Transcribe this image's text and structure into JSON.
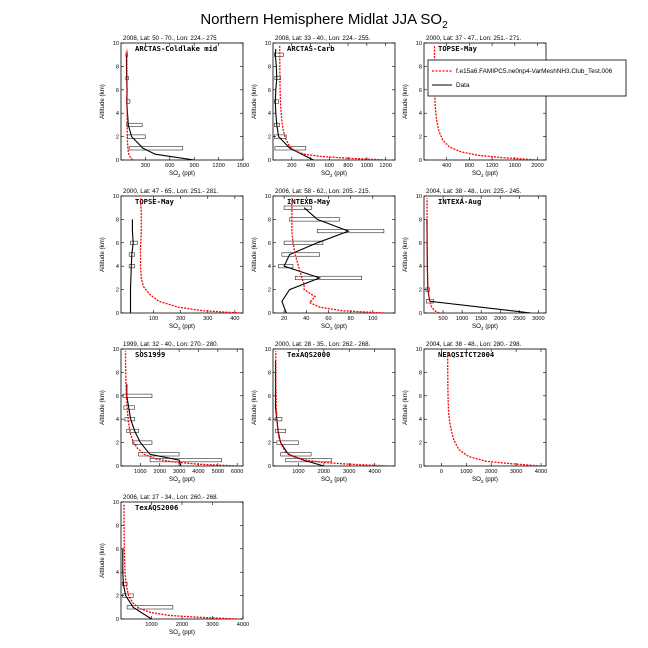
{
  "figure": {
    "title_main": "Northern Hemisphere Midlat JJA SO",
    "title_sub": "2",
    "legend": [
      {
        "label": "f.e15a6.FAMIPC5.ne0np4-VarMeshNH3.Club_Test.006",
        "color": "#ff0000",
        "style": "dashed"
      },
      {
        "label": "Data",
        "color": "#000000",
        "style": "solid"
      }
    ]
  },
  "chart_data": [
    {
      "type": "line",
      "subtitle": "2008, Lat: 50 - 70., Lon: 224.- 275",
      "inner_title": "ARCTAS-Coldlake mid",
      "xlabel_main": "SO",
      "xlabel_sub": "2",
      "xlabel_unit": " (ppt)",
      "ylabel": "Altitude (km)",
      "xlim": [
        0,
        1500
      ],
      "ylim": [
        0,
        10
      ],
      "xticks": [
        300,
        600,
        900,
        1200,
        1500
      ],
      "yticks": [
        0,
        2,
        4,
        6,
        8,
        10
      ],
      "model": {
        "x": [
          145,
          120,
          100,
          90,
          85,
          80,
          78,
          76,
          75,
          74,
          74,
          73,
          73
        ],
        "y": [
          0,
          0.2,
          0.4,
          0.7,
          1,
          1.5,
          2,
          3,
          4,
          5,
          6,
          8,
          9.5
        ]
      },
      "data": {
        "x": [
          900,
          420,
          270,
          130,
          90,
          80,
          70,
          75,
          70,
          68,
          68
        ],
        "y": [
          0,
          0.5,
          1,
          2,
          3,
          4,
          5,
          6,
          7,
          8,
          9
        ]
      },
      "bars": [
        {
          "y": 1,
          "lo": 100,
          "hi": 760
        },
        {
          "y": 2,
          "lo": 80,
          "hi": 300
        },
        {
          "y": 3,
          "lo": 70,
          "hi": 260
        },
        {
          "y": 5,
          "lo": 70,
          "hi": 110
        },
        {
          "y": 7,
          "lo": 60,
          "hi": 90
        },
        {
          "y": 9,
          "lo": 60,
          "hi": 80
        }
      ]
    },
    {
      "type": "line",
      "subtitle": "2008, Lat: 33 - 40., Lon: 224.- 255.",
      "inner_title": "ARCTAS-Carb",
      "xlabel_main": "SO",
      "xlabel_sub": "2",
      "xlabel_unit": " (ppt)",
      "ylabel": "Altitude (km)",
      "xlim": [
        0,
        1300
      ],
      "ylim": [
        0,
        10
      ],
      "xticks": [
        200,
        400,
        600,
        800,
        1000,
        1200
      ],
      "yticks": [
        0,
        2,
        4,
        6,
        8,
        10
      ],
      "model": {
        "x": [
          1200,
          800,
          520,
          330,
          230,
          175,
          135,
          110,
          95,
          85,
          80,
          76,
          73,
          72,
          71
        ],
        "y": [
          0,
          0.15,
          0.3,
          0.5,
          0.8,
          1.2,
          1.8,
          2.5,
          3.3,
          4.2,
          5,
          6,
          7,
          8.5,
          9.8
        ]
      },
      "data": {
        "x": [
          430,
          180,
          60,
          40,
          30,
          25,
          30,
          40,
          35,
          30,
          25,
          30
        ],
        "y": [
          0,
          1,
          2,
          3,
          4,
          5,
          6,
          7,
          8,
          8.5,
          9,
          9.5
        ]
      },
      "bars": [
        {
          "y": 1,
          "lo": 20,
          "hi": 350
        },
        {
          "y": 2,
          "lo": 15,
          "hi": 140
        },
        {
          "y": 3,
          "lo": 15,
          "hi": 70
        },
        {
          "y": 5,
          "lo": 15,
          "hi": 60
        },
        {
          "y": 7,
          "lo": 20,
          "hi": 80
        },
        {
          "y": 9,
          "lo": 15,
          "hi": 110
        }
      ]
    },
    {
      "type": "line",
      "subtitle": "2000, Lat: 37 - 47., Lon: 251.- 271.",
      "inner_title": "TOPSE-May",
      "xlabel_main": "SO",
      "xlabel_sub": "2",
      "xlabel_unit": " (ppt)",
      "ylabel": "Altitude (km)",
      "xlim": [
        0,
        2150
      ],
      "ylim": [
        0,
        10
      ],
      "xticks": [
        400,
        800,
        1200,
        1600,
        2000
      ],
      "yticks": [
        0,
        2,
        4,
        6,
        8,
        10
      ],
      "model": {
        "x": [
          2000,
          1400,
          950,
          650,
          450,
          330,
          260,
          220,
          200,
          190,
          185,
          185,
          185
        ],
        "y": [
          0,
          0.2,
          0.4,
          0.7,
          1.1,
          1.7,
          2.5,
          3.5,
          4.5,
          5.5,
          6.5,
          8,
          9.8
        ]
      },
      "data": {
        "x": [],
        "y": []
      },
      "bars": []
    },
    {
      "type": "line",
      "subtitle": "2000, Lat: 47 - 65., Lon: 251.- 281.",
      "inner_title": "TOPSE-May",
      "xlabel_main": "SO",
      "xlabel_sub": "2",
      "xlabel_unit": " (ppt)",
      "ylabel": "Altitude (km)",
      "xlim": [
        -20,
        430
      ],
      "ylim": [
        0,
        10
      ],
      "xticks": [
        100,
        200,
        300,
        400
      ],
      "yticks": [
        0,
        2,
        4,
        6,
        8,
        10
      ],
      "model": {
        "x": [
          420,
          280,
          190,
          120,
          85,
          62,
          55,
          52,
          52,
          55,
          55,
          52
        ],
        "y": [
          0,
          0.2,
          0.5,
          1,
          1.6,
          2.3,
          3,
          4,
          5.5,
          7,
          8.5,
          9.8
        ]
      },
      "data": {
        "x": [
          15,
          15,
          18,
          20,
          25,
          22,
          22
        ],
        "y": [
          0,
          2,
          4,
          5,
          6,
          7,
          8
        ]
      },
      "bars": [
        {
          "y": 4,
          "lo": 10,
          "hi": 30
        },
        {
          "y": 5,
          "lo": 10,
          "hi": 30
        },
        {
          "y": 6,
          "lo": 15,
          "hi": 40
        }
      ]
    },
    {
      "type": "line",
      "subtitle": "2006, Lat: 58 - 62., Lon: 205.- 215.",
      "inner_title": "INTEXB-May",
      "xlabel_main": "SO",
      "xlabel_sub": "2",
      "xlabel_unit": " (ppt)",
      "ylabel": "Altitude (km)",
      "xlim": [
        10,
        120
      ],
      "ylim": [
        0,
        10
      ],
      "xticks": [
        20,
        40,
        60,
        80,
        100
      ],
      "yticks": [
        0,
        2,
        4,
        6,
        8,
        10
      ],
      "model": {
        "x": [
          110,
          72,
          52,
          43,
          48,
          38,
          38,
          36,
          33,
          30,
          28,
          27,
          27,
          27
        ],
        "y": [
          0,
          0.2,
          0.5,
          0.9,
          1.4,
          2,
          2.5,
          3,
          4,
          5,
          6,
          7,
          8.5,
          9.8
        ]
      },
      "data": {
        "x": [
          22,
          18,
          25,
          52,
          20,
          25,
          50,
          78,
          50,
          38
        ],
        "y": [
          0,
          1,
          2,
          3,
          4,
          5,
          6,
          7,
          8,
          9
        ]
      },
      "bars": [
        {
          "y": 3,
          "lo": 30,
          "hi": 90
        },
        {
          "y": 4,
          "lo": 15,
          "hi": 28
        },
        {
          "y": 5,
          "lo": 18,
          "hi": 52
        },
        {
          "y": 6,
          "lo": 20,
          "hi": 55
        },
        {
          "y": 7,
          "lo": 50,
          "hi": 110
        },
        {
          "y": 8,
          "lo": 25,
          "hi": 70
        },
        {
          "y": 9,
          "lo": 20,
          "hi": 45
        }
      ]
    },
    {
      "type": "line",
      "subtitle": "2004, Lat: 38 - 48., Lon: 225.- 245.",
      "inner_title": "INTEXA-Aug",
      "xlabel_main": "SO",
      "xlabel_sub": "2",
      "xlabel_unit": " (ppt)",
      "ylabel": "Altitude (km)",
      "xlim": [
        0,
        3200
      ],
      "ylim": [
        0,
        10
      ],
      "xticks": [
        500,
        1000,
        1500,
        2000,
        2500,
        3000
      ],
      "yticks": [
        0,
        2,
        4,
        6,
        8,
        10
      ],
      "model": {
        "x": [
          400,
          280,
          200,
          150,
          120,
          100,
          90,
          85,
          82,
          80,
          80,
          80
        ],
        "y": [
          0,
          0.2,
          0.5,
          1,
          1.6,
          2.5,
          3.5,
          4.5,
          5.5,
          7,
          8.5,
          9.8
        ]
      },
      "data": {
        "x": [
          2800,
          150,
          100,
          90,
          80,
          75
        ],
        "y": [
          0,
          1,
          2,
          4,
          6,
          8
        ]
      },
      "bars": [
        {
          "y": 1,
          "lo": 60,
          "hi": 250
        },
        {
          "y": 2,
          "lo": 50,
          "hi": 150
        }
      ]
    },
    {
      "type": "line",
      "subtitle": "1999, Lat: 32 - 40., Lon: 270.- 280.",
      "inner_title": "SOS1999",
      "xlabel_main": "SO",
      "xlabel_sub": "2",
      "xlabel_unit": " (ppt)",
      "ylabel": "Altitude (km)",
      "xlim": [
        0,
        6300
      ],
      "ylim": [
        0,
        10
      ],
      "xticks": [
        1000,
        2000,
        3000,
        4000,
        5000,
        6000
      ],
      "yticks": [
        0,
        2,
        4,
        6,
        8,
        10
      ],
      "model": {
        "x": [
          6000,
          4000,
          2700,
          1800,
          1200,
          850,
          620,
          480,
          400,
          340,
          300,
          270,
          250,
          240,
          230
        ],
        "y": [
          0,
          0.15,
          0.35,
          0.6,
          1,
          1.5,
          2.1,
          2.8,
          3.6,
          4.5,
          5.5,
          6.5,
          7.5,
          8.5,
          9.8
        ]
      },
      "data": {
        "x": [
          3100,
          3000,
          1500,
          1000,
          700,
          500,
          400,
          300,
          300
        ],
        "y": [
          0,
          0.5,
          1,
          2,
          3,
          4,
          5,
          6,
          7
        ]
      },
      "bars": [
        {
          "y": 0.5,
          "lo": 1500,
          "hi": 5200
        },
        {
          "y": 1,
          "lo": 900,
          "hi": 3000
        },
        {
          "y": 2,
          "lo": 600,
          "hi": 1600
        },
        {
          "y": 3,
          "lo": 300,
          "hi": 900
        },
        {
          "y": 4,
          "lo": 200,
          "hi": 700
        },
        {
          "y": 5,
          "lo": 150,
          "hi": 700
        },
        {
          "y": 6,
          "lo": 100,
          "hi": 1600
        }
      ]
    },
    {
      "type": "line",
      "subtitle": "2000, Lat: 28 - 35., Lon: 262.- 268.",
      "inner_title": "TexAQS2000",
      "xlabel_main": "SO",
      "xlabel_sub": "2",
      "xlabel_unit": " (ppt)",
      "ylabel": "Altitude (km)",
      "xlim": [
        0,
        4800
      ],
      "ylim": [
        0,
        10
      ],
      "xticks": [
        1000,
        2000,
        3000,
        4000
      ],
      "yticks": [
        0,
        2,
        4,
        6,
        8,
        10
      ],
      "model": {
        "x": [
          4600,
          3000,
          2000,
          1300,
          800,
          500,
          330,
          230,
          180,
          150,
          130,
          120,
          115,
          110,
          110
        ],
        "y": [
          0,
          0.15,
          0.3,
          0.5,
          0.8,
          1.2,
          1.8,
          2.5,
          3.3,
          4.2,
          5,
          6,
          7,
          8.5,
          9.8
        ]
      },
      "data": {
        "x": [
          2000,
          1200,
          600,
          300,
          200,
          150,
          100,
          100,
          100,
          100,
          100
        ],
        "y": [
          0,
          0.5,
          1,
          2,
          3,
          4,
          5,
          6,
          7,
          8,
          9
        ]
      },
      "bars": [
        {
          "y": 0.5,
          "lo": 500,
          "hi": 2300
        },
        {
          "y": 1,
          "lo": 300,
          "hi": 1500
        },
        {
          "y": 2,
          "lo": 150,
          "hi": 1000
        },
        {
          "y": 3,
          "lo": 100,
          "hi": 500
        },
        {
          "y": 4,
          "lo": 80,
          "hi": 350
        }
      ]
    },
    {
      "type": "line",
      "subtitle": "2004, Lat: 38 - 48., Lon: 280.- 298.",
      "inner_title": "NEAQSITCT2004",
      "xlabel_main": "SO",
      "xlabel_sub": "2",
      "xlabel_unit": " (ppt)",
      "ylabel": "Altitude (km)",
      "xlim": [
        -700,
        4200
      ],
      "ylim": [
        0,
        10
      ],
      "xticks": [
        0,
        1000,
        2000,
        3000,
        4000
      ],
      "yticks": [
        0,
        2,
        4,
        6,
        8,
        10
      ],
      "model": {
        "x": [
          4000,
          2800,
          1800,
          1100,
          700,
          500,
          400,
          330,
          290,
          270,
          260,
          255,
          250,
          250
        ],
        "y": [
          0,
          0.2,
          0.4,
          0.8,
          1.4,
          2.2,
          3,
          3.8,
          4.6,
          5.5,
          6.5,
          7.5,
          8.5,
          9.8
        ]
      },
      "data": {
        "x": [],
        "y": []
      },
      "bars": []
    },
    {
      "type": "line",
      "subtitle": "2006, Lat: 27 - 34., Lon: 260.- 268.",
      "inner_title": "TexAQS2006",
      "xlabel_main": "SO",
      "xlabel_sub": "2",
      "xlabel_unit": " (ppt)",
      "ylabel": "Altitude (km)",
      "xlim": [
        0,
        4000
      ],
      "ylim": [
        0,
        10
      ],
      "xticks": [
        1000,
        2000,
        3000,
        4000
      ],
      "yticks": [
        0,
        2,
        4,
        6,
        8,
        10
      ],
      "model": {
        "x": [
          3800,
          2500,
          1600,
          1000,
          600,
          380,
          250,
          180,
          140,
          120,
          110,
          105,
          100,
          100
        ],
        "y": [
          0,
          0.15,
          0.3,
          0.55,
          0.9,
          1.4,
          2,
          2.8,
          3.7,
          4.7,
          5.8,
          7,
          8.5,
          9.8
        ]
      },
      "data": {
        "x": [
          1000,
          400,
          150,
          80,
          60,
          60,
          60
        ],
        "y": [
          0,
          1,
          2,
          3,
          4,
          5,
          6
        ]
      },
      "bars": [
        {
          "y": 1,
          "lo": 200,
          "hi": 1700
        },
        {
          "y": 2,
          "lo": 50,
          "hi": 400
        },
        {
          "y": 3,
          "lo": 40,
          "hi": 200
        }
      ]
    }
  ]
}
